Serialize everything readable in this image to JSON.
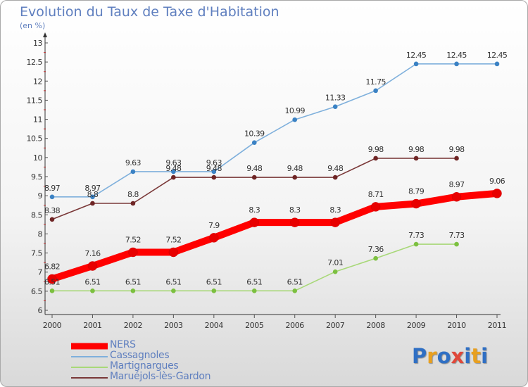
{
  "header": {
    "title": "Evolution du Taux de Taxe d'Habitation",
    "subtitle": "(en %)"
  },
  "logo": {
    "text": "Proxiti",
    "colors": [
      "#2f6fc4",
      "#e8a020",
      "#2f6fc4",
      "#e0483a",
      "#2f6fc4",
      "#e8a020",
      "#2f6fc4"
    ]
  },
  "chart_data": {
    "type": "line",
    "title": "Evolution du Taux de Taxe d'Habitation",
    "subtitle": "(en %)",
    "xlabel": "",
    "ylabel": "",
    "x": [
      "2000",
      "2001",
      "2002",
      "2003",
      "2004",
      "2005",
      "2006",
      "2007",
      "2008",
      "2009",
      "2010",
      "2011"
    ],
    "ylim": [
      6,
      13
    ],
    "yticks": [
      "6",
      "6.5",
      "7",
      "7.5",
      "8",
      "8.5",
      "9",
      "9.5",
      "10",
      "10.5",
      "11",
      "11.5",
      "12",
      "12.5",
      "13"
    ],
    "grid": false,
    "legend_position": "bottom-left",
    "series": [
      {
        "name": "NERS",
        "color": "#ff0000",
        "marker": "#e80000",
        "values": [
          6.82,
          7.16,
          7.52,
          7.52,
          7.9,
          8.3,
          8.3,
          8.3,
          8.71,
          8.79,
          8.97,
          9.06
        ],
        "labels": [
          "6.82",
          "7.16",
          "7.52",
          "7.52",
          "7.9",
          "8.3",
          "8.3",
          "8.3",
          "8.71",
          "8.79",
          "8.97",
          "9.06"
        ]
      },
      {
        "name": "Cassagnoles",
        "color": "#7fb0dc",
        "marker": "#3b82c4",
        "values": [
          8.97,
          8.97,
          9.63,
          9.63,
          9.63,
          10.39,
          10.99,
          11.33,
          11.75,
          12.45,
          12.45,
          12.45
        ],
        "labels": [
          "8.97",
          "8.97",
          "9.63",
          "9.63",
          "9.63",
          "10.39",
          "10.99",
          "11.33",
          "11.75",
          "12.45",
          "12.45",
          "12.45"
        ]
      },
      {
        "name": "Martignargues",
        "color": "#a8d878",
        "marker": "#7cc040",
        "values": [
          6.51,
          6.51,
          6.51,
          6.51,
          6.51,
          6.51,
          6.51,
          7.01,
          7.36,
          7.73,
          7.73,
          null
        ],
        "labels": [
          "6.51",
          "6.51",
          "6.51",
          "6.51",
          "6.51",
          "6.51",
          "6.51",
          "7.01",
          "7.36",
          "7.73",
          "7.73",
          null
        ]
      },
      {
        "name": "Maruéjols-lès-Gardon",
        "color": "#7a3838",
        "marker": "#6e2424",
        "values": [
          8.38,
          8.8,
          8.8,
          9.48,
          9.48,
          9.48,
          9.48,
          9.48,
          9.98,
          9.98,
          9.98,
          null
        ],
        "labels": [
          "8.38",
          "8.8",
          "8.8",
          "9.48",
          "9.48",
          "9.48",
          "9.48",
          "9.48",
          "9.98",
          "9.98",
          "9.98",
          null
        ]
      }
    ]
  }
}
